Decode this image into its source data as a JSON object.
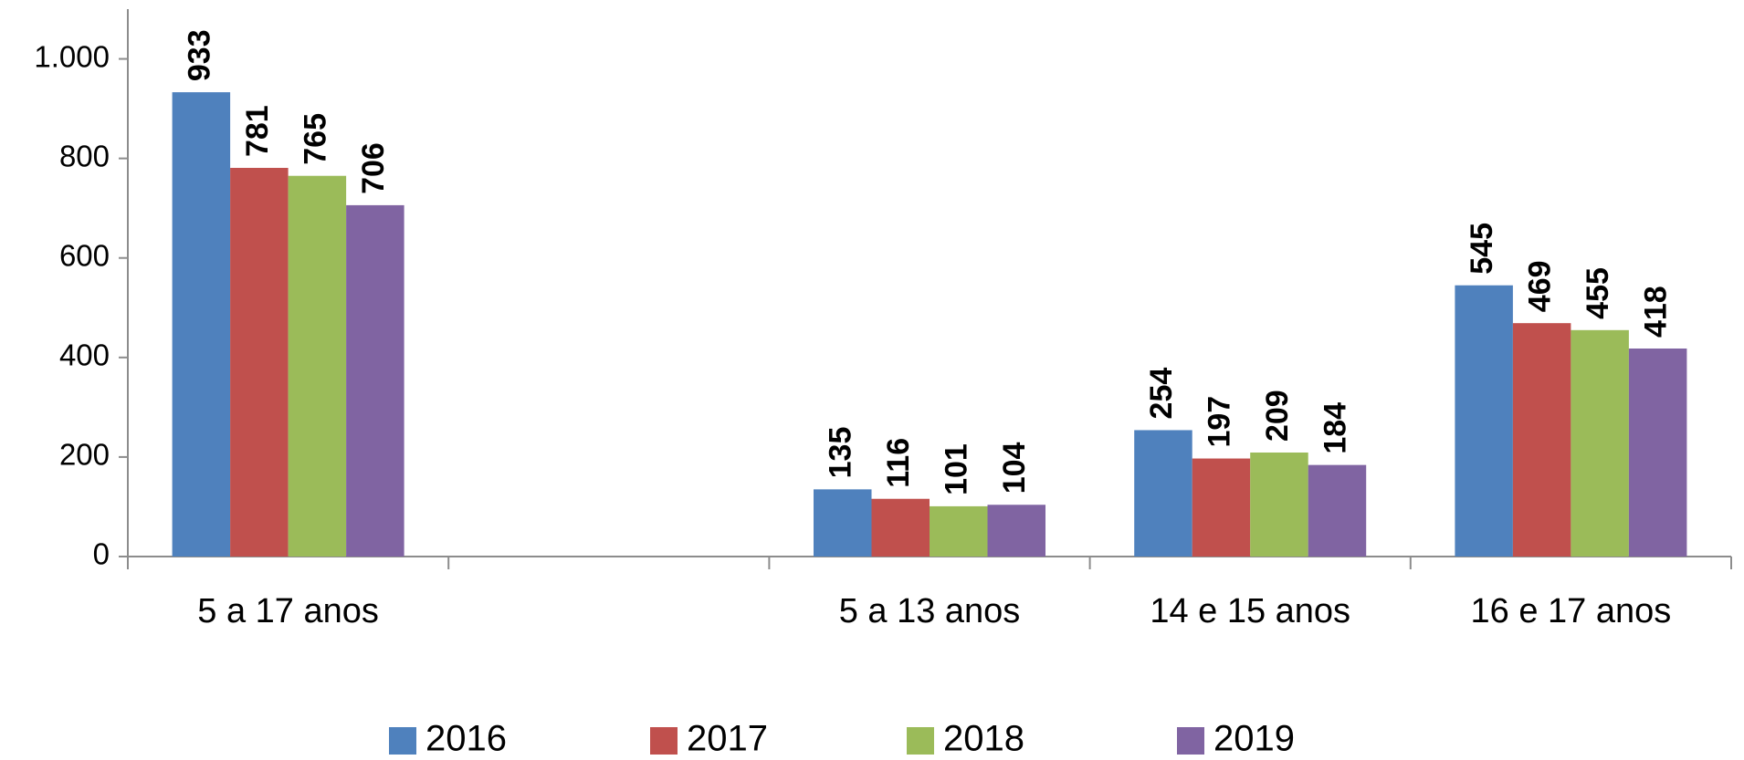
{
  "chart_data": {
    "type": "bar",
    "categories": [
      "5 a 17 anos",
      null,
      "5 a 13 anos",
      "14 e 15 anos",
      "16 e 17 anos"
    ],
    "series": [
      {
        "name": "2016",
        "color": "#4f81bd",
        "values": [
          933,
          null,
          135,
          254,
          545
        ]
      },
      {
        "name": "2017",
        "color": "#c0504d",
        "values": [
          781,
          null,
          116,
          197,
          469
        ]
      },
      {
        "name": "2018",
        "color": "#9bbb59",
        "values": [
          765,
          null,
          101,
          209,
          455
        ]
      },
      {
        "name": "2019",
        "color": "#8064a2",
        "values": [
          706,
          null,
          104,
          184,
          418
        ]
      }
    ],
    "ylim": [
      0,
      1100
    ],
    "yticks": [
      0,
      200,
      400,
      600,
      800,
      {
        "value": 1000,
        "label": "1.000"
      }
    ],
    "grid": false,
    "legend": "bottom"
  }
}
